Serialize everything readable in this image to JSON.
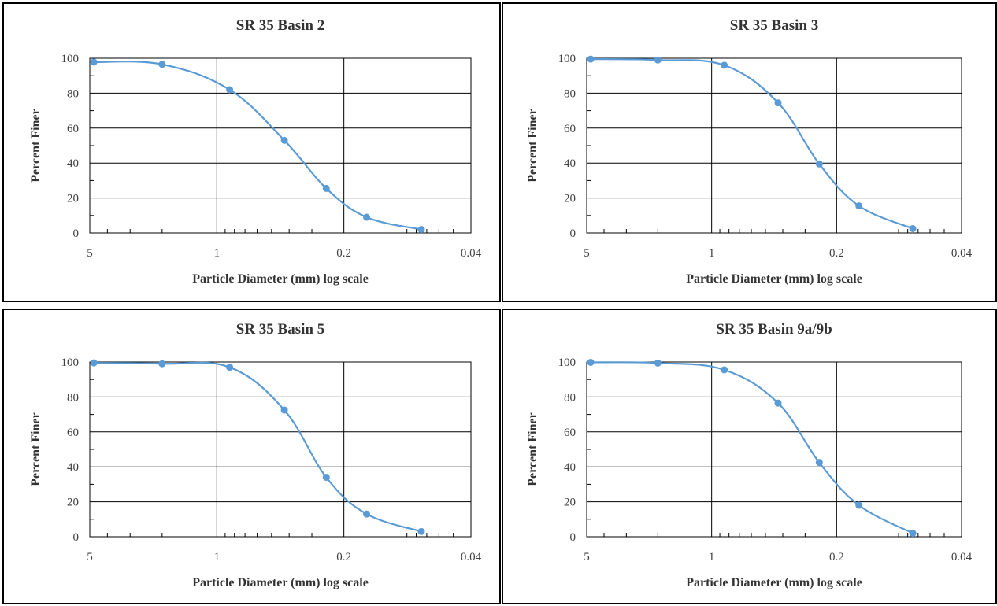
{
  "colors": {
    "series": "#5b9bd5",
    "grid": "#000000"
  },
  "chart_data": [
    {
      "type": "scatter",
      "title": "SR 35 Basin 2",
      "xlabel": "Particle Diameter (mm) log scale",
      "ylabel": "Percent Finer",
      "x_scale": "log",
      "x_reversed": true,
      "xlim": [
        5,
        0.04
      ],
      "ylim": [
        0,
        100
      ],
      "x_tick_labels": [
        "5",
        "1",
        "0.2",
        "0.04"
      ],
      "x_ticks": [
        5,
        1,
        0.2,
        0.04
      ],
      "y_tick_labels": [
        "0",
        "20",
        "40",
        "60",
        "80",
        "100"
      ],
      "y_ticks": [
        0,
        20,
        40,
        60,
        80,
        100
      ],
      "grid": true,
      "smooth_line": true,
      "series": [
        {
          "x": [
            4.75,
            2.0,
            0.85,
            0.425,
            0.25,
            0.15,
            0.075
          ],
          "y": [
            97.8,
            96.5,
            82.0,
            53.0,
            25.5,
            9.0,
            2.0
          ]
        }
      ]
    },
    {
      "type": "scatter",
      "title": "SR 35 Basin 3",
      "xlabel": "Particle Diameter (mm) log scale",
      "ylabel": "Percent Finer",
      "x_scale": "log",
      "x_reversed": true,
      "xlim": [
        5,
        0.04
      ],
      "ylim": [
        0,
        100
      ],
      "x_tick_labels": [
        "5",
        "1",
        "0.2",
        "0.04"
      ],
      "x_ticks": [
        5,
        1,
        0.2,
        0.04
      ],
      "y_tick_labels": [
        "0",
        "20",
        "40",
        "60",
        "80",
        "100"
      ],
      "y_ticks": [
        0,
        20,
        40,
        60,
        80,
        100
      ],
      "grid": true,
      "smooth_line": true,
      "series": [
        {
          "x": [
            4.75,
            2.0,
            0.85,
            0.425,
            0.25,
            0.15,
            0.075
          ],
          "y": [
            99.5,
            99.0,
            96.0,
            74.5,
            39.5,
            15.5,
            2.5
          ]
        }
      ]
    },
    {
      "type": "scatter",
      "title": "SR 35 Basin 5",
      "xlabel": "Particle Diameter (mm) log scale",
      "ylabel": "Percent Finer",
      "x_scale": "log",
      "x_reversed": true,
      "xlim": [
        5,
        0.04
      ],
      "ylim": [
        0,
        100
      ],
      "x_tick_labels": [
        "5",
        "1",
        "0.2",
        "0.04"
      ],
      "x_ticks": [
        5,
        1,
        0.2,
        0.04
      ],
      "y_tick_labels": [
        "0",
        "20",
        "40",
        "60",
        "80",
        "100"
      ],
      "y_ticks": [
        0,
        20,
        40,
        60,
        80,
        100
      ],
      "grid": true,
      "smooth_line": true,
      "series": [
        {
          "x": [
            4.75,
            2.0,
            0.85,
            0.425,
            0.25,
            0.15,
            0.075
          ],
          "y": [
            99.5,
            99.0,
            97.0,
            72.5,
            34.0,
            13.0,
            3.0
          ]
        }
      ]
    },
    {
      "type": "scatter",
      "title": "SR 35 Basin 9a/9b",
      "xlabel": "Particle Diameter (mm) log scale",
      "ylabel": "Percent Finer",
      "x_scale": "log",
      "x_reversed": true,
      "xlim": [
        5,
        0.04
      ],
      "ylim": [
        0,
        100
      ],
      "x_tick_labels": [
        "5",
        "1",
        "0.2",
        "0.04"
      ],
      "x_ticks": [
        5,
        1,
        0.2,
        0.04
      ],
      "y_tick_labels": [
        "0",
        "20",
        "40",
        "60",
        "80",
        "100"
      ],
      "y_ticks": [
        0,
        20,
        40,
        60,
        80,
        100
      ],
      "grid": true,
      "smooth_line": true,
      "series": [
        {
          "x": [
            4.75,
            2.0,
            0.85,
            0.425,
            0.25,
            0.15,
            0.075
          ],
          "y": [
            99.8,
            99.4,
            95.5,
            76.5,
            42.5,
            18.0,
            2.0
          ]
        }
      ]
    }
  ]
}
